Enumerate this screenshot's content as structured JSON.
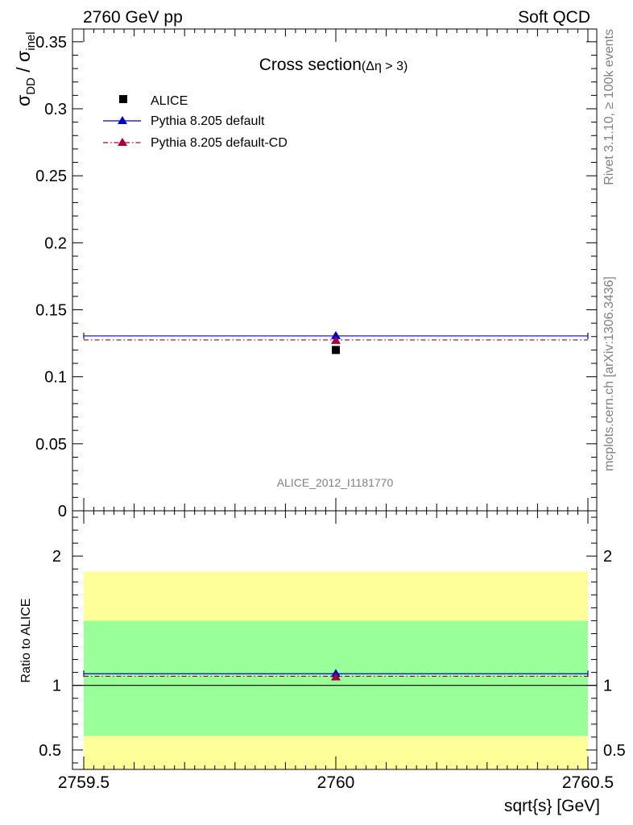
{
  "header": {
    "left": "2760 GeV pp",
    "right": "Soft QCD"
  },
  "side_text": {
    "rivet": "Rivet 3.1.10, ≥ 100k events",
    "mcplots": "mcplots.cern.ch [arXiv:1306.3436]"
  },
  "chart_data": [
    {
      "type": "scatter",
      "panel": "main",
      "title_main": "Cross section",
      "title_sub": "(Δη > 3)",
      "ylabel": {
        "base": "σ",
        "sub": "DD",
        "sep": " / ",
        "base2": "σ",
        "sub2": "inel"
      },
      "xlim": [
        2759.5,
        2760.5
      ],
      "ylim": [
        0,
        0.36
      ],
      "yticks": [
        0,
        0.05,
        0.1,
        0.15,
        0.2,
        0.25,
        0.3,
        0.35
      ],
      "ytick_labels": [
        "0",
        "0.05",
        "0.1",
        "0.15",
        "0.2",
        "0.25",
        "0.3",
        "0.35"
      ],
      "analysis_label": "ALICE_2012_I1181770",
      "legend_position": "top-left",
      "series": [
        {
          "name": "ALICE",
          "marker": "square",
          "color": "#000000",
          "x": 2760,
          "y": 0.12
        },
        {
          "name": "Pythia 8.205 default",
          "marker": "triangle",
          "line": "solid",
          "color": "#0000cc",
          "x": 2760,
          "y": 0.1305
        },
        {
          "name": "Pythia 8.205 default-CD",
          "marker": "triangle",
          "line": "dash-dot",
          "color": "#aa0033",
          "x": 2760,
          "y": 0.1275
        }
      ]
    },
    {
      "type": "scatter",
      "panel": "ratio",
      "ylabel": "Ratio to ALICE",
      "xlabel": "sqrt{s} [GeV]",
      "xlim": [
        2759.5,
        2760.5
      ],
      "ylim": [
        0.35,
        2.35
      ],
      "yticks": [
        0.5,
        1,
        2
      ],
      "ytick_labels": [
        "0.5",
        "1",
        "2"
      ],
      "xticks": [
        2759.5,
        2760,
        2760.5
      ],
      "xtick_labels": [
        "2759.5",
        "2760",
        "2760.5"
      ],
      "bands": [
        {
          "name": "yellow",
          "color": "#ffff99",
          "low": 0.35,
          "high": 1.88
        },
        {
          "name": "green",
          "color": "#99ff99",
          "low": 0.61,
          "high": 1.5
        }
      ],
      "reference": 1.0,
      "series": [
        {
          "name": "Pythia 8.205 default",
          "color": "#0000cc",
          "x": 2760,
          "y": 1.09
        },
        {
          "name": "Pythia 8.205 default-CD",
          "color": "#aa0033",
          "x": 2760,
          "y": 1.07
        }
      ]
    }
  ]
}
